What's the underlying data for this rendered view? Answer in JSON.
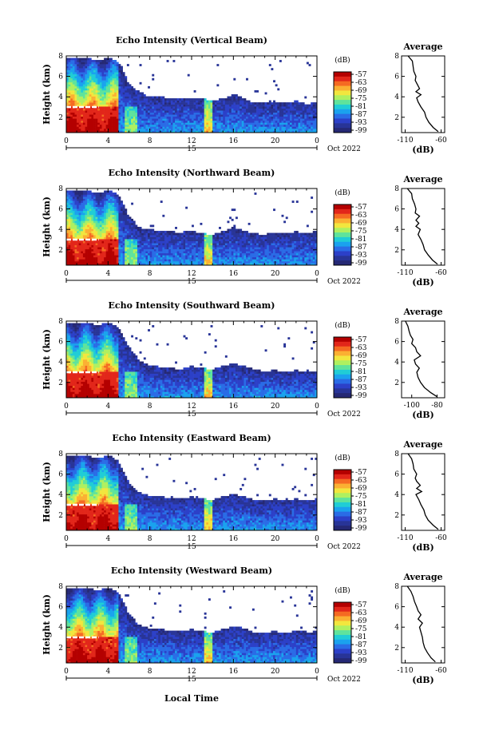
{
  "figure": {
    "bottom_label": "Local Time",
    "date_label": "Oct 2022",
    "colorbar_unit": "(dB)",
    "colorbar_ticks": [
      "-57",
      "-63",
      "-69",
      "-75",
      "-81",
      "-87",
      "-93",
      "-99"
    ],
    "colorbar_colors": [
      "#b40000",
      "#e2261a",
      "#f56a22",
      "#fbb032",
      "#f2e63e",
      "#aff060",
      "#5fe39c",
      "#20cdd6",
      "#1aa2ee",
      "#2a6ce6",
      "#2c40c8",
      "#283497",
      "#252874"
    ]
  },
  "chart_data": [
    {
      "type": "heatmap",
      "title": "Echo Intensity (Vertical Beam)",
      "ylabel": "Height (km)",
      "xlabel": "Local Time",
      "x_ticks": [
        "0",
        "4",
        "8",
        "12",
        "16",
        "20",
        "0"
      ],
      "day_label": "15",
      "y_ticks": [
        "2",
        "4",
        "6",
        "8"
      ],
      "xlim": [
        0,
        24
      ],
      "ylim": [
        0.5,
        8.0
      ],
      "color_range_db": [
        -99,
        -57
      ],
      "echo_top_km": [
        7.9,
        7.9,
        7.9,
        7.5,
        7.9,
        7.4,
        5.3,
        4.5,
        4.0,
        4.0,
        3.9,
        3.8,
        3.9,
        3.8,
        3.7,
        3.8,
        4.3,
        3.9,
        3.4,
        3.4,
        3.5,
        3.4,
        3.6,
        3.3,
        3.5
      ]
    },
    {
      "type": "line",
      "title": "Average",
      "xlabel": "(dB)",
      "ylabel": "",
      "x_ticks": [
        "-110",
        "-60"
      ],
      "y_ticks": [
        "2",
        "4",
        "6",
        "8"
      ],
      "xlim": [
        -115,
        -55
      ],
      "ylim": [
        0.5,
        8.0
      ],
      "height_km": [
        0.6,
        1.0,
        1.5,
        2.0,
        2.5,
        3.0,
        3.5,
        3.9,
        4.2,
        4.5,
        4.8,
        5.2,
        5.6,
        6.0,
        6.5,
        7.0,
        7.5,
        8.0
      ],
      "value_db": [
        -64,
        -71,
        -77,
        -81,
        -83,
        -88,
        -92,
        -94,
        -88,
        -95,
        -90,
        -93,
        -96,
        -95,
        -98,
        -99,
        -100,
        -106
      ]
    },
    {
      "type": "heatmap",
      "title": "Echo Intensity (Northward Beam)",
      "ylabel": "Height (km)",
      "xlabel": "Local Time",
      "x_ticks": [
        "0",
        "4",
        "8",
        "12",
        "16",
        "20",
        "0"
      ],
      "day_label": "15",
      "y_ticks": [
        "2",
        "4",
        "6",
        "8"
      ],
      "xlim": [
        0,
        24
      ],
      "ylim": [
        0.5,
        8.0
      ],
      "color_range_db": [
        -99,
        -57
      ],
      "echo_top_km": [
        7.9,
        7.9,
        7.9,
        7.5,
        7.9,
        7.4,
        5.3,
        4.2,
        4.0,
        3.9,
        3.8,
        3.7,
        3.9,
        3.6,
        3.5,
        3.8,
        4.2,
        3.9,
        3.6,
        3.5,
        3.7,
        3.6,
        3.8,
        3.6,
        3.9
      ]
    },
    {
      "type": "line",
      "title": "Average",
      "xlabel": "(dB)",
      "ylabel": "",
      "x_ticks": [
        "-110",
        "-60"
      ],
      "y_ticks": [
        "2",
        "4",
        "6",
        "8"
      ],
      "xlim": [
        -115,
        -55
      ],
      "ylim": [
        0.5,
        8.0
      ],
      "height_km": [
        0.6,
        1.0,
        1.5,
        2.0,
        2.5,
        3.0,
        3.5,
        4.0,
        4.3,
        4.6,
        4.9,
        5.3,
        5.6,
        6.0,
        6.5,
        7.0,
        7.5,
        8.0
      ],
      "value_db": [
        -65,
        -72,
        -78,
        -83,
        -85,
        -88,
        -92,
        -89,
        -95,
        -91,
        -95,
        -90,
        -96,
        -95,
        -97,
        -100,
        -101,
        -107
      ]
    },
    {
      "type": "heatmap",
      "title": "Echo Intensity (Southward Beam)",
      "ylabel": "Height (km)",
      "xlabel": "Local Time",
      "x_ticks": [
        "0",
        "4",
        "8",
        "12",
        "16",
        "20",
        "0"
      ],
      "day_label": "15",
      "y_ticks": [
        "2",
        "4",
        "6",
        "8"
      ],
      "xlim": [
        0,
        24
      ],
      "ylim": [
        0.5,
        8.0
      ],
      "color_range_db": [
        -99,
        -57
      ],
      "echo_top_km": [
        7.9,
        7.9,
        7.9,
        7.6,
        7.9,
        7.4,
        5.4,
        4.2,
        3.7,
        3.5,
        3.4,
        3.3,
        3.6,
        3.4,
        3.3,
        3.6,
        3.9,
        3.6,
        3.3,
        3.1,
        3.2,
        3.0,
        3.2,
        3.0,
        3.1
      ]
    },
    {
      "type": "line",
      "title": "Average",
      "xlabel": "(dB)",
      "ylabel": "",
      "x_ticks": [
        "-100",
        "-80"
      ],
      "y_ticks": [
        "2",
        "4",
        "6",
        "8"
      ],
      "xlim": [
        -108,
        -74
      ],
      "ylim": [
        0.5,
        8.0
      ],
      "height_km": [
        0.6,
        1.0,
        1.5,
        2.0,
        2.5,
        3.0,
        3.4,
        3.8,
        4.2,
        4.6,
        5.0,
        5.4,
        5.8,
        6.2,
        6.6,
        7.0,
        7.5,
        8.0
      ],
      "value_db": [
        -80,
        -85,
        -90,
        -93,
        -95,
        -96,
        -94,
        -97,
        -98,
        -93,
        -96,
        -97,
        -100,
        -99,
        -101,
        -102,
        -103,
        -105
      ]
    },
    {
      "type": "heatmap",
      "title": "Echo Intensity (Eastward Beam)",
      "ylabel": "Height (km)",
      "xlabel": "Local Time",
      "x_ticks": [
        "0",
        "4",
        "8",
        "12",
        "16",
        "20",
        "0"
      ],
      "day_label": "15",
      "y_ticks": [
        "2",
        "4",
        "6",
        "8"
      ],
      "xlim": [
        0,
        24
      ],
      "ylim": [
        0.5,
        8.0
      ],
      "color_range_db": [
        -99,
        -57
      ],
      "echo_top_km": [
        7.9,
        7.9,
        7.9,
        7.5,
        7.9,
        7.3,
        5.2,
        4.2,
        3.9,
        3.8,
        3.7,
        3.6,
        3.8,
        3.6,
        3.5,
        3.8,
        4.1,
        3.8,
        3.5,
        3.4,
        3.6,
        3.4,
        3.6,
        3.4,
        3.6
      ]
    },
    {
      "type": "line",
      "title": "Average",
      "xlabel": "(dB)",
      "ylabel": "",
      "x_ticks": [
        "-110",
        "-60"
      ],
      "y_ticks": [
        "2",
        "4",
        "6",
        "8"
      ],
      "xlim": [
        -115,
        -55
      ],
      "ylim": [
        0.5,
        8.0
      ],
      "height_km": [
        0.6,
        1.0,
        1.5,
        2.0,
        2.5,
        3.0,
        3.5,
        4.0,
        4.3,
        4.6,
        4.9,
        5.3,
        5.6,
        6.0,
        6.5,
        7.0,
        7.5,
        8.0
      ],
      "value_db": [
        -64,
        -71,
        -78,
        -82,
        -84,
        -88,
        -91,
        -95,
        -87,
        -94,
        -89,
        -94,
        -96,
        -94,
        -98,
        -99,
        -101,
        -106
      ]
    },
    {
      "type": "heatmap",
      "title": "Echo Intensity (Westward Beam)",
      "ylabel": "Height (km)",
      "xlabel": "Local Time",
      "x_ticks": [
        "0",
        "4",
        "8",
        "12",
        "16",
        "20",
        "0"
      ],
      "day_label": "15",
      "y_ticks": [
        "2",
        "4",
        "6",
        "8"
      ],
      "xlim": [
        0,
        24
      ],
      "ylim": [
        0.5,
        8.0
      ],
      "color_range_db": [
        -99,
        -57
      ],
      "echo_top_km": [
        7.9,
        7.9,
        7.9,
        7.6,
        7.9,
        7.4,
        5.3,
        4.2,
        3.9,
        3.8,
        3.7,
        3.6,
        3.8,
        3.6,
        3.5,
        3.8,
        4.1,
        3.9,
        3.5,
        3.5,
        3.6,
        3.4,
        3.7,
        3.5,
        3.6
      ]
    },
    {
      "type": "line",
      "title": "Average",
      "xlabel": "(dB)",
      "ylabel": "",
      "x_ticks": [
        "-110",
        "-60"
      ],
      "y_ticks": [
        "2",
        "4",
        "6",
        "8"
      ],
      "xlim": [
        -115,
        -55
      ],
      "ylim": [
        0.5,
        8.0
      ],
      "height_km": [
        0.6,
        1.0,
        1.5,
        2.0,
        2.5,
        3.0,
        3.5,
        4.0,
        4.4,
        4.8,
        5.2,
        5.6,
        6.0,
        6.5,
        7.0,
        7.5,
        8.0
      ],
      "value_db": [
        -68,
        -74,
        -79,
        -83,
        -85,
        -86,
        -88,
        -90,
        -86,
        -92,
        -88,
        -92,
        -94,
        -97,
        -99,
        -102,
        -107
      ]
    }
  ]
}
